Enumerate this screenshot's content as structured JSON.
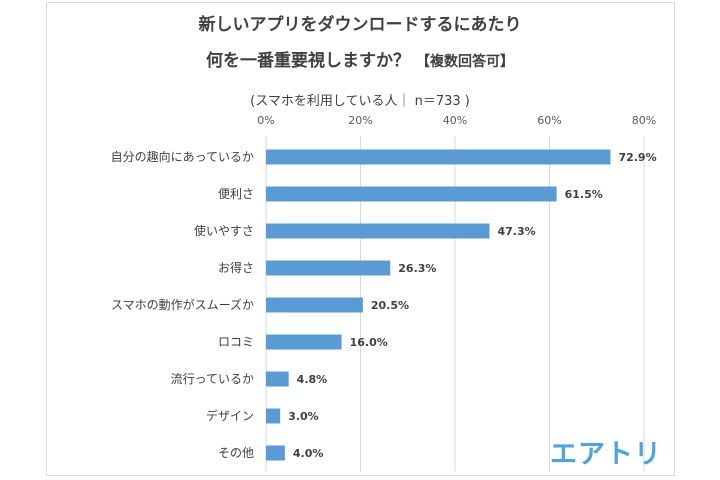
{
  "title_line1": "新しいアプリをダウンロードするにあたり",
  "title_line2": "何を一番重要視しますか？",
  "title_tag": "【複数回答可】",
  "subtitle": "(スマホを利用している人｜ n＝733 )",
  "logo_text": "エアトリ",
  "colors": {
    "bar": "#5b9bd5",
    "grid": "#d9d9d9",
    "logo": "#4aa5e0"
  },
  "chart_data": {
    "type": "bar",
    "orientation": "horizontal",
    "categories": [
      "自分の趣向にあっているか",
      "便利さ",
      "使いやすさ",
      "お得さ",
      "スマホの動作がスムーズか",
      "ロコミ",
      "流行っているか",
      "デザイン",
      "その他"
    ],
    "values": [
      72.9,
      61.5,
      47.3,
      26.3,
      20.5,
      16.0,
      4.8,
      3.0,
      4.0
    ],
    "value_labels": [
      "72.9%",
      "61.5%",
      "47.3%",
      "26.3%",
      "20.5%",
      "16.0%",
      "4.8%",
      "3.0%",
      "4.0%"
    ],
    "xlim": [
      0,
      80
    ],
    "xticks": [
      0,
      20,
      40,
      60,
      80
    ],
    "xtick_labels": [
      "0%",
      "20%",
      "40%",
      "60%",
      "80%"
    ],
    "axis_position": "top",
    "grid": true
  }
}
